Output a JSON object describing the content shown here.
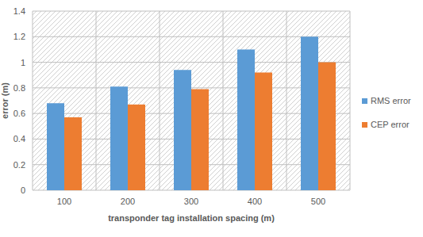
{
  "chart_data": {
    "type": "bar",
    "x_label": "transponder tag installation spacing (m)",
    "y_label": "error (m)",
    "categories": [
      "100",
      "200",
      "300",
      "400",
      "500"
    ],
    "series": [
      {
        "name": "RMS error",
        "color": "#5b9bd5",
        "values": [
          0.68,
          0.81,
          0.94,
          1.1,
          1.2
        ]
      },
      {
        "name": "CEP error",
        "color": "#ed7d31",
        "values": [
          0.57,
          0.67,
          0.79,
          0.92,
          1.0
        ]
      }
    ],
    "ylim": [
      0,
      1.4
    ],
    "yticks": [
      0,
      0.2,
      0.4,
      0.6,
      0.8,
      1,
      1.2,
      1.4
    ],
    "grid": true,
    "legend": "right"
  }
}
